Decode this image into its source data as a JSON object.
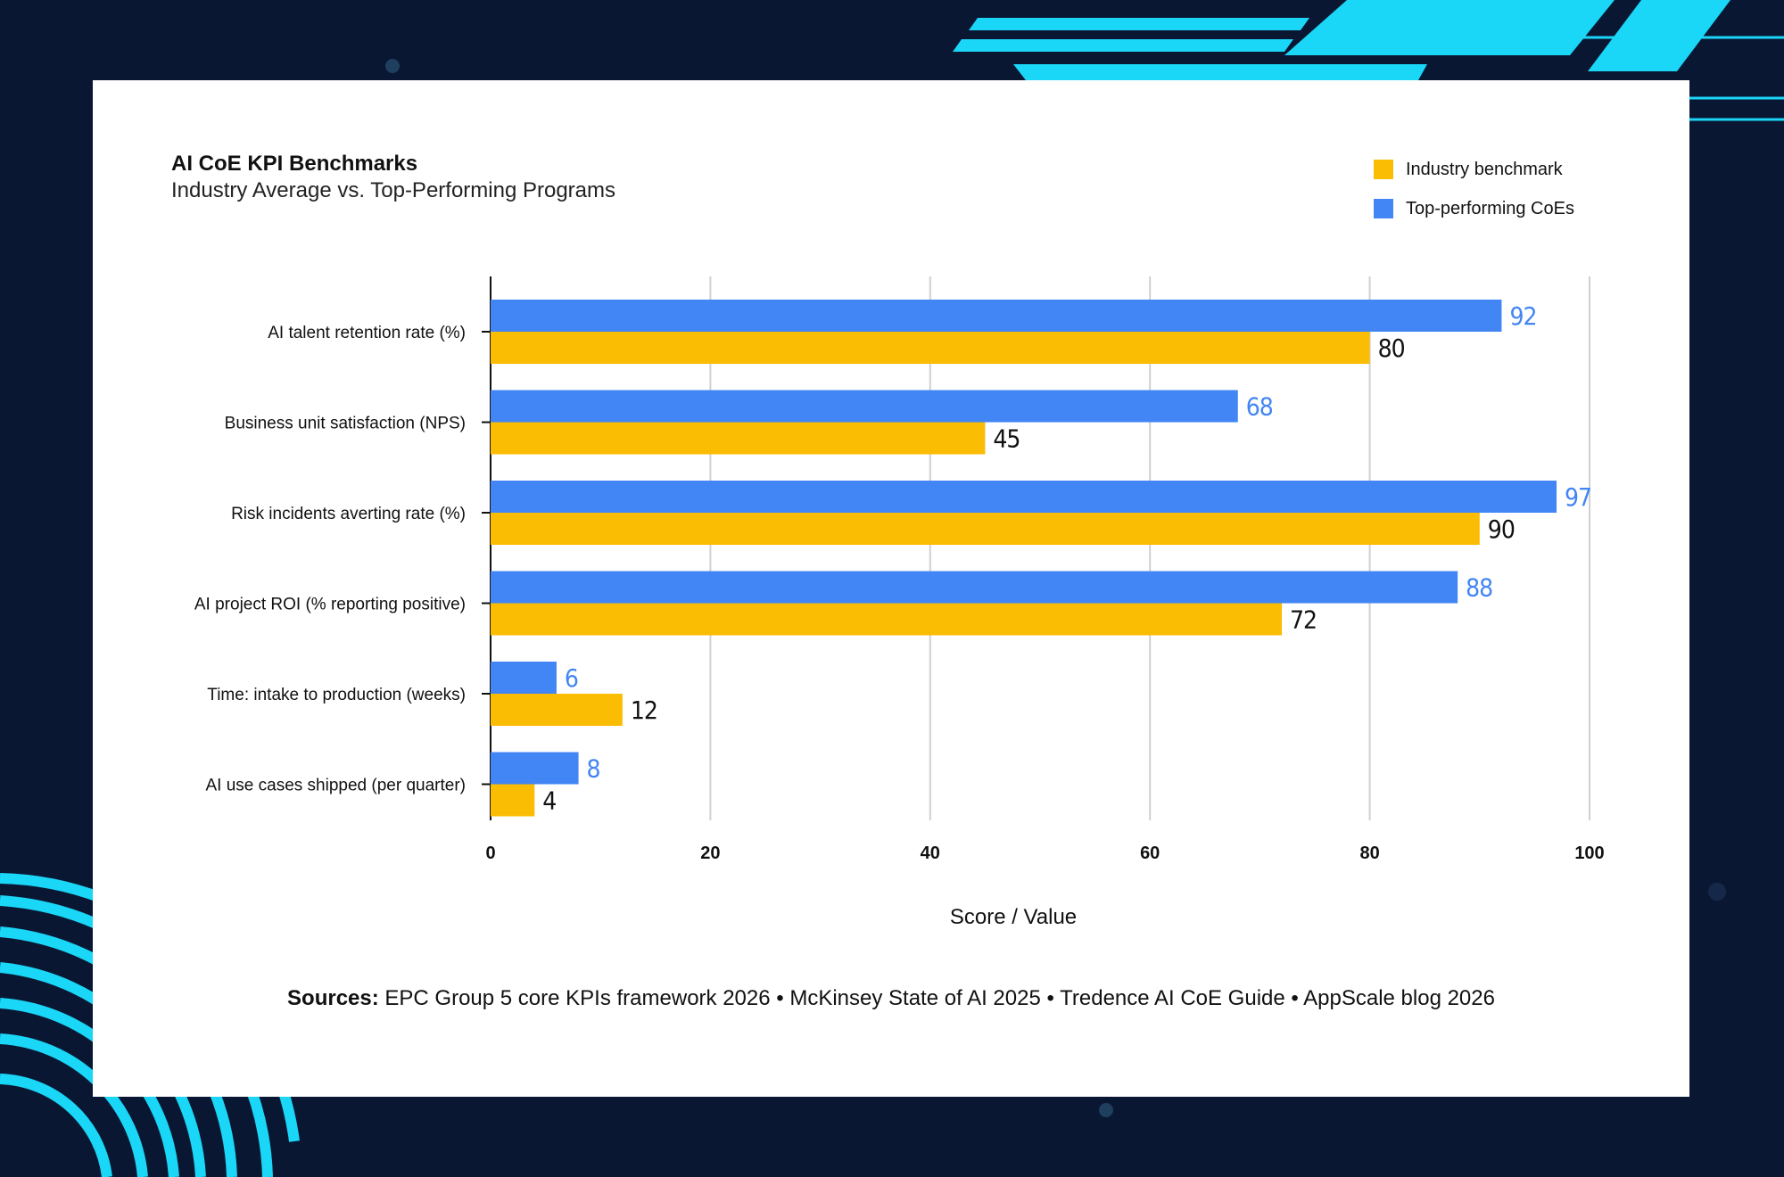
{
  "page": {
    "background_color": "#0a1733",
    "accent_color": "#1ad6f7"
  },
  "chart_data": {
    "type": "bar",
    "orientation": "horizontal",
    "title": "AI CoE KPI Benchmarks",
    "subtitle": "Industry Average vs. Top-Performing Programs",
    "xlabel": "Score / Value",
    "ylabel": "",
    "xlim": [
      0,
      100
    ],
    "xticks": [
      "0",
      "20",
      "40",
      "60",
      "80",
      "100"
    ],
    "grid": true,
    "legend_position": "top-right",
    "categories": [
      "AI talent retention rate (%)",
      "Business unit satisfaction (NPS)",
      "Risk incidents averting rate (%)",
      "AI project ROI (% reporting positive)",
      "Time: intake to production (weeks)",
      "AI use cases shipped (per quarter)"
    ],
    "series": [
      {
        "name": "Top-performing CoEs",
        "color": "#4285f4",
        "label_color": "#4285f4",
        "values": [
          92,
          68,
          97,
          88,
          6,
          8
        ]
      },
      {
        "name": "Industry benchmark",
        "color": "#fbbc04",
        "label_color": "#111111",
        "values": [
          80,
          45,
          90,
          72,
          12,
          4
        ]
      }
    ]
  },
  "legend": [
    {
      "label": "Industry benchmark",
      "color": "#fbbc04"
    },
    {
      "label": "Top-performing CoEs",
      "color": "#4285f4"
    }
  ],
  "sources": {
    "prefix": "Sources:",
    "text": " EPC Group 5 core KPIs framework 2026 • McKinsey State of AI 2025 • Tredence AI CoE Guide • AppScale blog 2026"
  }
}
